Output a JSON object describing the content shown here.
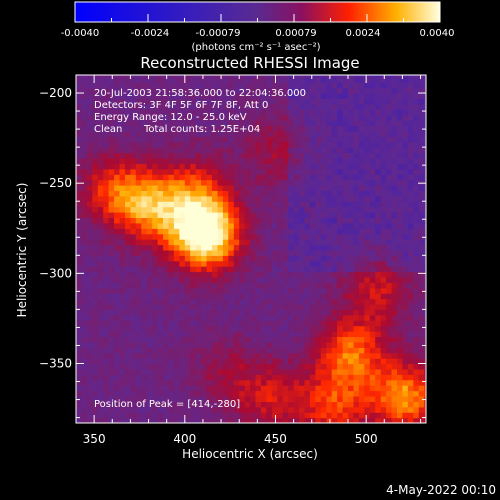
{
  "colorbar": {
    "tick_labels": [
      "-0.0040",
      "-0.0024",
      "-0.00079",
      "0.00079",
      "0.0024",
      "0.0040"
    ],
    "unit_label": "(photons cm⁻² s⁻¹ asec⁻²)"
  },
  "annotation": {
    "line1": "20-Jul-2003 21:58:36.000 to 22:04:36.000",
    "line2": "Detectors: 3F 4F 5F 6F 7F 8F, Att 0",
    "line3": "Energy Range: 12.0 - 25.0 keV",
    "line4a": "Clean",
    "line4b": "Total counts: 1.25E+04",
    "peak": "Position of Peak = [414,-280]"
  },
  "footer": {
    "timestamp": "4-May-2022 00:10"
  },
  "chart_data": {
    "type": "heatmap",
    "title": "Reconstructed RHESSI Image",
    "xlabel": "Heliocentric X (arcsec)",
    "ylabel": "Heliocentric Y (arcsec)",
    "xlim": [
      340,
      533
    ],
    "ylim": [
      -383,
      -190
    ],
    "xticks": [
      350,
      400,
      450,
      500
    ],
    "yticks": [
      -200,
      -250,
      -300,
      -350
    ],
    "colorbar_range": [
      -0.004,
      0.004
    ],
    "peak_position": [
      414,
      -280
    ],
    "sources": [
      {
        "x": 410,
        "y": -280,
        "strength": 1.0
      },
      {
        "x": 380,
        "y": -265,
        "strength": 0.55
      },
      {
        "x": 360,
        "y": -255,
        "strength": 0.45
      },
      {
        "x": 405,
        "y": -255,
        "strength": 0.4
      },
      {
        "x": 450,
        "y": -233,
        "strength": 0.25
      },
      {
        "x": 490,
        "y": -345,
        "strength": 0.55
      },
      {
        "x": 520,
        "y": -370,
        "strength": 0.65
      },
      {
        "x": 480,
        "y": -375,
        "strength": 0.45
      },
      {
        "x": 445,
        "y": -370,
        "strength": 0.35
      },
      {
        "x": 505,
        "y": -310,
        "strength": 0.35
      },
      {
        "x": 420,
        "y": -355,
        "strength": 0.2
      }
    ]
  }
}
